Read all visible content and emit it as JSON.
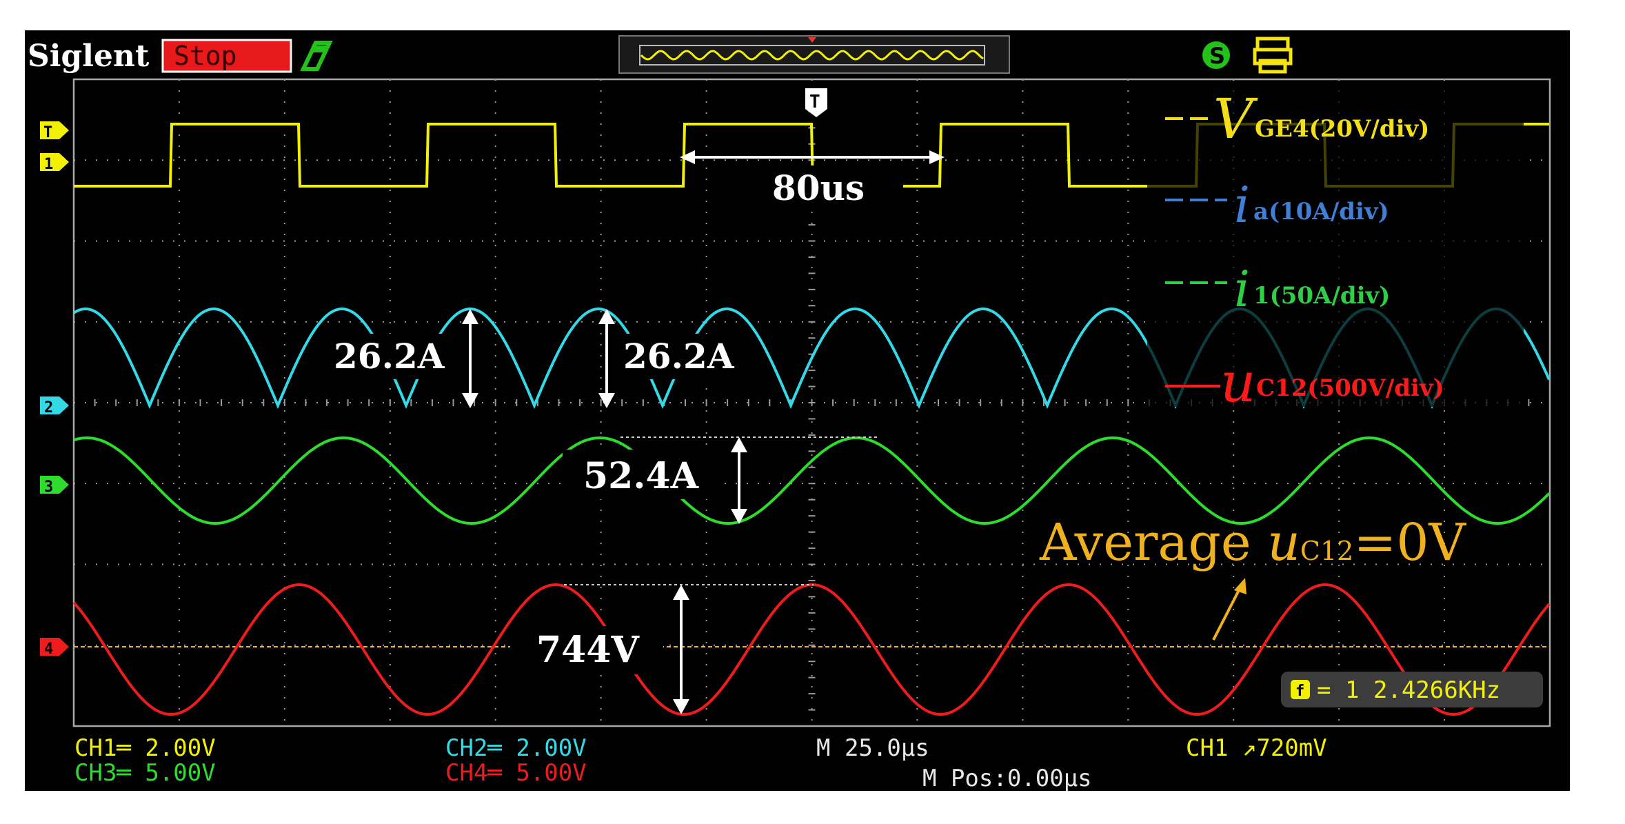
{
  "header": {
    "brand": "Siglent",
    "run_state": "Stop",
    "colors": {
      "stop_bg": "#e8191a",
      "brand_text": "#ffffff",
      "usb_icon": "#24c11b",
      "printer_icon": "#f5e40f"
    }
  },
  "icons": {
    "usb": "usb-stick-icon",
    "save": "settings-s-icon",
    "print": "printer-icon",
    "trigger_marker": "trigger-t-icon"
  },
  "channel_markers": {
    "trigger": "T",
    "ch1": "1",
    "ch2": "2",
    "ch3": "3",
    "ch4": "4"
  },
  "legend": {
    "items": [
      {
        "symbol": "V",
        "sub": "GE4(20V/div)",
        "color": "#f2df1a"
      },
      {
        "symbol": "i",
        "sub": "a(10A/div)",
        "color": "#3f7fd6"
      },
      {
        "symbol": "i",
        "sub": "1(50A/div)",
        "color": "#2fcf45"
      },
      {
        "symbol": "u",
        "sub": "C12(500V/div)",
        "color": "#ff1a1a"
      }
    ]
  },
  "annotations": {
    "period": "80us",
    "ia_pp_left": "26.2A",
    "ia_pp_right": "26.2A",
    "i1_pp": "52.4A",
    "uc_pp": "744V",
    "average_word": "Average ",
    "average_symbol": "u",
    "average_sub": "C12",
    "average_rest": "=0V"
  },
  "frequency": {
    "label": "f",
    "value": "= 1 2.4266KHz"
  },
  "footer": {
    "ch1": "CH1═ 2.00V",
    "ch3": "CH3═ 5.00V",
    "ch2": "CH2═ 2.00V",
    "ch4": "CH4═ 5.00V",
    "timebase": "M 25.0μs",
    "mpos": "M Pos:0.00μs",
    "trigger": "CH1 ↗720mV"
  },
  "colors": {
    "ch1": "#f2f200",
    "ch2": "#33d9e6",
    "ch3": "#2edc2e",
    "ch4": "#ee1c1c",
    "grid": "#a8a8a8",
    "annotation": "#ffffff",
    "average": "#f0b11e"
  }
}
